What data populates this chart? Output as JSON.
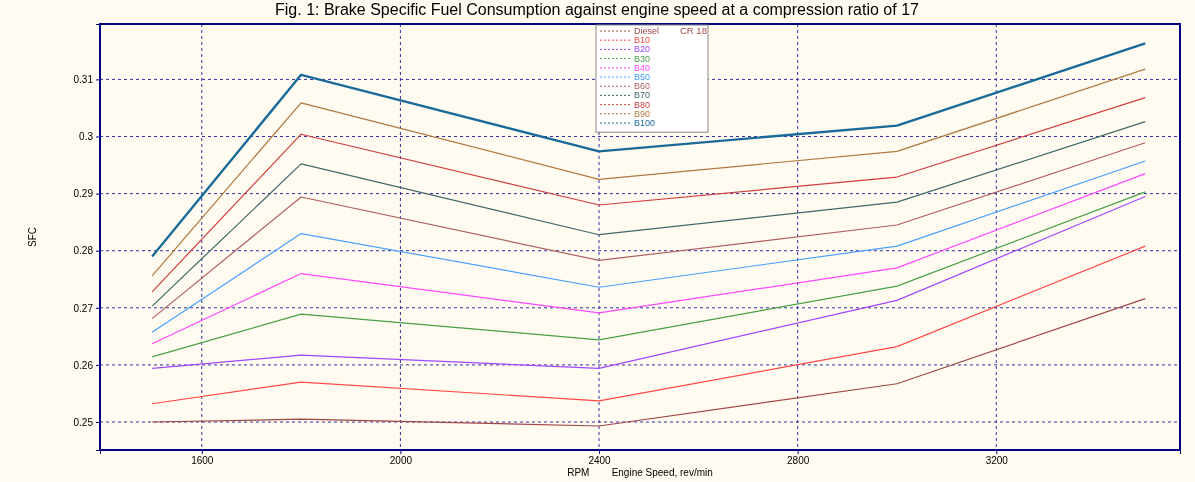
{
  "chart_data": {
    "type": "line",
    "title": "Fig. 1: Brake Specific Fuel Consumption against engine speed at a compression ratio of 17",
    "xlabel": "RPM        Engine Speed, rev/min",
    "ylabel": "SFC",
    "legend_title": "CR 18",
    "x": [
      1500,
      1800,
      2400,
      3000,
      3500
    ],
    "xlim": [
      1395,
      3570
    ],
    "xticks": [
      1600,
      2000,
      2400,
      2800,
      3200
    ],
    "ylim": [
      0.2451,
      0.3197
    ],
    "yticks": [
      0.25,
      0.26,
      0.27,
      0.28,
      0.29,
      0.3,
      0.31
    ],
    "grid": true,
    "legend": "top",
    "marker": "none",
    "line_style": "solid",
    "series": [
      {
        "name": "Diesel",
        "color": "#a04848",
        "values": [
          0.25,
          0.2505,
          0.2493,
          0.2567,
          0.2716
        ]
      },
      {
        "name": "B10",
        "color": "#ff4848",
        "values": [
          0.2532,
          0.257,
          0.2537,
          0.2632,
          0.2808
        ]
      },
      {
        "name": "B20",
        "color": "#a048ff",
        "values": [
          0.2594,
          0.2617,
          0.2594,
          0.2713,
          0.2895
        ]
      },
      {
        "name": "B30",
        "color": "#48a048",
        "values": [
          0.2614,
          0.2689,
          0.2644,
          0.2738,
          0.2903
        ]
      },
      {
        "name": "B40",
        "color": "#ff48ff",
        "values": [
          0.2637,
          0.276,
          0.2691,
          0.277,
          0.2935
        ]
      },
      {
        "name": "B50",
        "color": "#48a0ff",
        "values": [
          0.2657,
          0.283,
          0.2736,
          0.2808,
          0.2957
        ]
      },
      {
        "name": "B60",
        "color": "#b06060",
        "values": [
          0.2681,
          0.2894,
          0.2783,
          0.2845,
          0.2989
        ]
      },
      {
        "name": "B70",
        "color": "#406868",
        "values": [
          0.2703,
          0.2952,
          0.2828,
          0.2885,
          0.3026
        ]
      },
      {
        "name": "B80",
        "color": "#d04040",
        "values": [
          0.2728,
          0.3004,
          0.288,
          0.2929,
          0.3068
        ]
      },
      {
        "name": "B90",
        "color": "#b07840",
        "values": [
          0.2756,
          0.3059,
          0.2925,
          0.2974,
          0.3118
        ]
      },
      {
        "name": "B100",
        "color": "#1a6a9a",
        "values": [
          0.279,
          0.3108,
          0.2974,
          0.3019,
          0.3163
        ]
      }
    ]
  }
}
